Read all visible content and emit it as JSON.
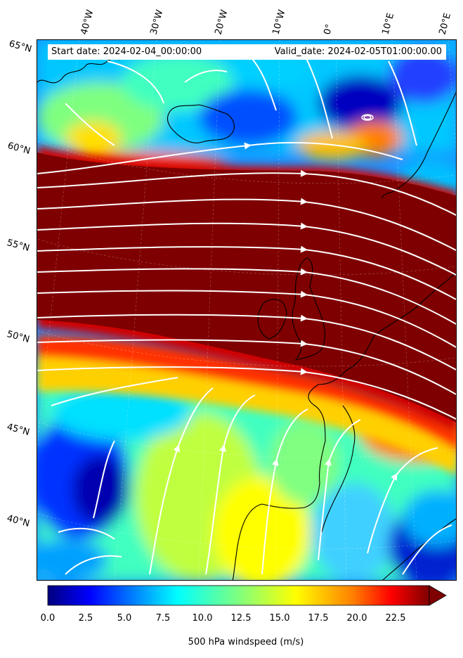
{
  "header": {
    "start_date": "Start date: 2024-02-04_00:00:00",
    "valid_date": "Valid_date: 2024-02-05T01:00:00.00"
  },
  "longitude_labels": [
    "40°W",
    "30°W",
    "20°W",
    "10°W",
    "0°",
    "10°E",
    "20°E"
  ],
  "latitude_labels": [
    "65°N",
    "60°N",
    "55°N",
    "50°N",
    "45°N",
    "40°N"
  ],
  "colorbar": {
    "label": "500 hPa windspeed (m/s)",
    "ticks": [
      "0.0",
      "2.5",
      "5.0",
      "7.5",
      "10.0",
      "12.5",
      "15.0",
      "17.5",
      "20.0",
      "22.5"
    ],
    "range": [
      0,
      25
    ],
    "extend": "max",
    "colormap": "jet",
    "colors": [
      "#00007f",
      "#0000ff",
      "#007fff",
      "#00ffff",
      "#7fff7f",
      "#ffff00",
      "#ff7f00",
      "#ff0000",
      "#7f0000"
    ]
  },
  "map": {
    "region": "North Atlantic and Western Europe",
    "field": "500 hPa wind speed with streamlines",
    "streamline_color": "#ffffff",
    "coastline_color": "#000000",
    "jet_core_color": "#7f0000"
  }
}
